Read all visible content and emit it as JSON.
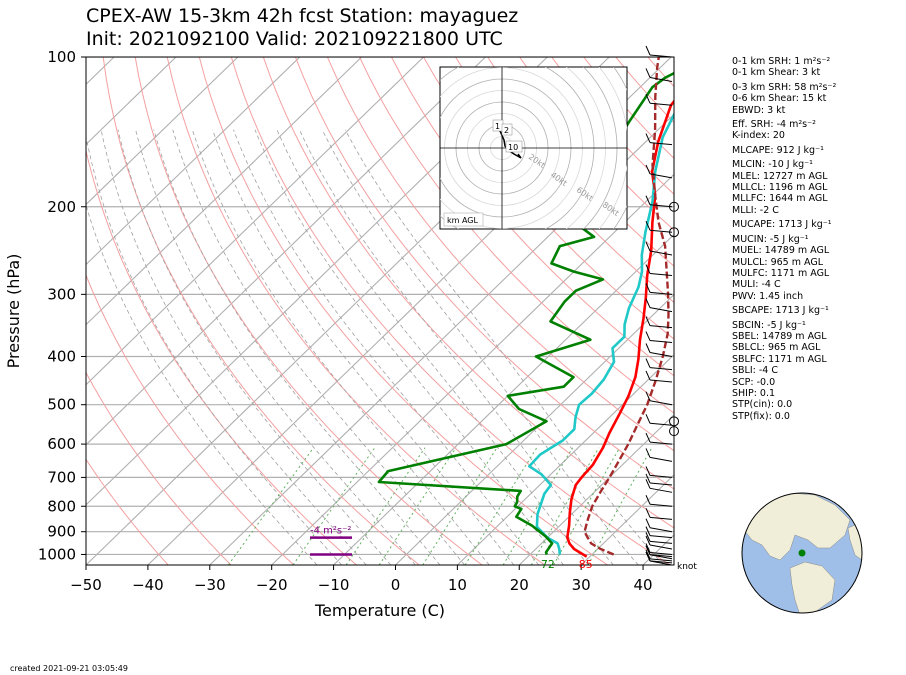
{
  "title": {
    "line1": "CPEX-AW 15-3km  42h fcst  Station: mayaguez",
    "line2": "Init: 2021092100  Valid: 202109221800 UTC"
  },
  "chart_data": {
    "type": "line",
    "subtype": "skew-T log-P",
    "xlabel": "Temperature (C)",
    "ylabel": "Pressure (hPa)",
    "xlim": [
      -50,
      45
    ],
    "ylim": [
      1050,
      100
    ],
    "y_scale": "log",
    "xticks": [
      -50,
      -40,
      -30,
      -20,
      -10,
      0,
      10,
      20,
      30,
      40
    ],
    "yticks": [
      100,
      200,
      300,
      400,
      500,
      600,
      700,
      800,
      900,
      1000
    ],
    "grid": true,
    "series": [
      {
        "color": "#ff0000",
        "points": [
          [
            29.5,
            1010
          ],
          [
            26.2,
            975
          ],
          [
            24.5,
            950
          ],
          [
            23.2,
            925
          ],
          [
            21.5,
            875
          ],
          [
            19.5,
            825
          ],
          [
            17.5,
            775
          ],
          [
            15.8,
            725
          ],
          [
            15.5,
            700
          ],
          [
            15.2,
            660
          ],
          [
            14.0,
            610
          ],
          [
            12.6,
            570
          ],
          [
            11.0,
            520
          ],
          [
            9.5,
            480
          ],
          [
            7.5,
            440
          ],
          [
            5.0,
            405
          ],
          [
            2.0,
            370
          ],
          [
            -1.0,
            335
          ],
          [
            -4.0,
            305
          ],
          [
            -7.5,
            275
          ],
          [
            -11.0,
            245
          ],
          [
            -15.5,
            215
          ],
          [
            -19.5,
            190
          ],
          [
            -24.0,
            170
          ],
          [
            -28.0,
            148
          ],
          [
            -32.0,
            125
          ],
          [
            -33.0,
            110
          ],
          [
            -31.0,
            100
          ]
        ]
      },
      {
        "color": "#20c8c8",
        "points": [
          [
            24.8,
            1000
          ],
          [
            23.8,
            975
          ],
          [
            22.6,
            950
          ],
          [
            20.0,
            925
          ],
          [
            16.5,
            880
          ],
          [
            14.5,
            830
          ],
          [
            13.3,
            790
          ],
          [
            12.2,
            755
          ],
          [
            11.8,
            725
          ],
          [
            8.5,
            690
          ],
          [
            5.2,
            665
          ],
          [
            5.0,
            630
          ],
          [
            6.3,
            590
          ],
          [
            6.3,
            560
          ],
          [
            4.5,
            530
          ],
          [
            3.0,
            500
          ],
          [
            3.2,
            475
          ],
          [
            2.8,
            445
          ],
          [
            1.5,
            410
          ],
          [
            -1.0,
            385
          ],
          [
            -1.0,
            365
          ],
          [
            -3.0,
            345
          ],
          [
            -5.0,
            320
          ],
          [
            -7.0,
            290
          ],
          [
            -9.0,
            270
          ],
          [
            -11.8,
            250
          ],
          [
            -15.0,
            225
          ],
          [
            -19.0,
            195
          ],
          [
            -23.5,
            170
          ],
          [
            -28.0,
            145
          ],
          [
            -31.5,
            120
          ],
          [
            -32.0,
            108
          ],
          [
            -30.0,
            100
          ]
        ]
      },
      {
        "color": "#008000",
        "points": [
          [
            22.7,
            1000
          ],
          [
            22.2,
            990
          ],
          [
            21.7,
            950
          ],
          [
            19.5,
            920
          ],
          [
            15.5,
            875
          ],
          [
            11.5,
            840
          ],
          [
            11.0,
            810
          ],
          [
            9.5,
            800
          ],
          [
            9.2,
            785
          ],
          [
            8.3,
            765
          ],
          [
            7.9,
            745
          ],
          [
            -16.5,
            715
          ],
          [
            -16.8,
            680
          ],
          [
            -2.2,
            600
          ],
          [
            0.5,
            540
          ],
          [
            -6.0,
            510
          ],
          [
            -10.0,
            480
          ],
          [
            -2.5,
            460
          ],
          [
            -2.5,
            440
          ],
          [
            -12.0,
            400
          ],
          [
            -6.0,
            370
          ],
          [
            -15.5,
            340
          ],
          [
            -16.5,
            310
          ],
          [
            -16.5,
            295
          ],
          [
            -14.0,
            280
          ],
          [
            -20.0,
            270
          ],
          [
            -25.0,
            260
          ],
          [
            -26.5,
            240
          ],
          [
            -22.5,
            230
          ],
          [
            -30.0,
            210
          ],
          [
            -32.0,
            200
          ],
          [
            -30.5,
            175
          ],
          [
            -33.5,
            160
          ],
          [
            -36.0,
            135
          ],
          [
            -38.0,
            115
          ],
          [
            -37.5,
            110
          ],
          [
            -36.0,
            105
          ],
          [
            -34.0,
            100
          ]
        ]
      },
      {
        "color": "#a52a2a",
        "dashed": true,
        "points": [
          [
            33.5,
            1000
          ],
          [
            30.5,
            975
          ],
          [
            28.0,
            950
          ],
          [
            26.5,
            925
          ],
          [
            25.0,
            900
          ],
          [
            23.5,
            850
          ],
          [
            22.0,
            800
          ],
          [
            21.0,
            750
          ],
          [
            20.0,
            700
          ],
          [
            18.8,
            650
          ],
          [
            17.5,
            600
          ],
          [
            15.8,
            550
          ],
          [
            14.0,
            500
          ],
          [
            11.5,
            450
          ],
          [
            8.5,
            400
          ],
          [
            5.5,
            360
          ],
          [
            2.5,
            330
          ],
          [
            -1.0,
            300
          ],
          [
            -5.0,
            270
          ],
          [
            -9.5,
            240
          ],
          [
            -14.5,
            215
          ],
          [
            -19.5,
            190
          ],
          [
            -25.0,
            165
          ],
          [
            -30.5,
            140
          ],
          [
            -36.0,
            120
          ],
          [
            -40.5,
            105
          ],
          [
            -42.0,
            100
          ]
        ]
      }
    ],
    "annotations": {
      "surface_temp_label": "85",
      "surface_dew_label": "72",
      "srh_layer_label": "-4 m²s⁻²",
      "barb_unit": "knot"
    },
    "hodograph": {
      "label": "km AGL",
      "ring_labels": [
        "20kt",
        "40kt",
        "60kt",
        "80kt"
      ],
      "height_labels": [
        "1",
        "2",
        "10"
      ]
    },
    "wind_barbs_pressure": [
      1050,
      1040,
      1030,
      1020,
      1010,
      1000,
      975,
      950,
      925,
      900,
      850,
      800,
      750,
      725,
      700,
      650,
      600,
      550,
      500,
      450,
      425,
      400,
      375,
      350,
      325,
      300,
      275,
      250,
      225,
      200,
      175,
      150,
      125,
      112,
      100
    ],
    "calm_circles_pressure": [
      200,
      225,
      540,
      565
    ]
  },
  "stats": [
    {
      "lines": [
        "0-1 km SRH: 1 m²s⁻²",
        "0-1 km Shear: 3 kt"
      ]
    },
    {
      "lines": [
        "0-3 km SRH: 58 m²s⁻²",
        "0-6 km Shear: 15 kt",
        "EBWD: 3 kt"
      ]
    },
    {
      "lines": [
        "Eff. SRH: -4 m²s⁻²",
        "K-index: 20"
      ]
    },
    {
      "lines": [
        "MLCAPE: 912 J kg⁻¹"
      ]
    },
    {
      "lines": [
        "MLCIN: -10 J kg⁻¹",
        "MLEL: 12727 m AGL",
        "MLLCL: 1196 m AGL",
        "MLLFC: 1644 m AGL",
        "MLLI: -2 C"
      ]
    },
    {
      "lines": [
        "MUCAPE: 1713 J kg⁻¹"
      ]
    },
    {
      "lines": [
        "MUCIN: -5 J kg⁻¹",
        "MUEL: 14789 m AGL",
        "MULCL: 965 m AGL",
        "MULFC: 1171 m AGL",
        "MULI: -4 C",
        "PWV: 1.45 inch"
      ]
    },
    {
      "lines": [
        "SBCAPE: 1713 J kg⁻¹"
      ]
    },
    {
      "lines": [
        "SBCIN: -5 J kg⁻¹",
        "SBEL: 14789 m AGL",
        "SBLCL: 965 m AGL",
        "SBLFC: 1171 m AGL",
        "SBLI: -4 C",
        "SCP: -0.0",
        "SHIP: 0.1",
        "STP(cin): 0.0",
        "STP(fix): 0.0"
      ]
    }
  ],
  "footer": {
    "created": "created 2021-09-21 03:05:49"
  },
  "colors": {
    "temperature": "#ff0000",
    "virtual_temp": "#20c8c8",
    "dewpoint": "#008000",
    "parcel": "#a52a2a",
    "srh_layer": "#800080",
    "globe_ocean": "#a0bfe8",
    "globe_land": "#f0eed8",
    "station_marker": "#008000"
  }
}
